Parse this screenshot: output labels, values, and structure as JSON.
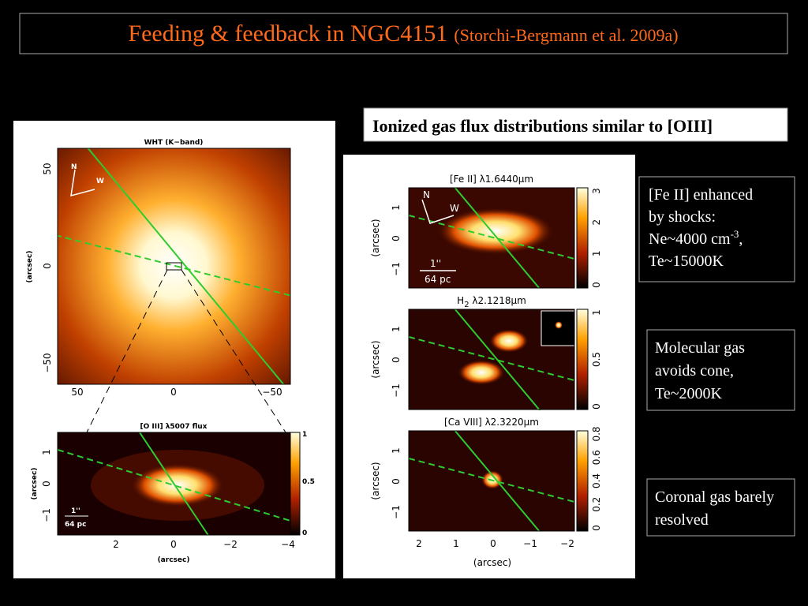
{
  "header": {
    "title": "Feeding & feedback in NGC4151",
    "citation": "(Storchi-Bergmann et al. 2009a)"
  },
  "subtitle": "Ionized gas flux distributions similar to [OIII]",
  "notes": [
    {
      "parts": [
        "[Fe II] enhanced by shocks: Ne~4000 cm",
        "-3",
        ", Te~15000K"
      ]
    },
    {
      "parts": [
        "Molecular gas avoids cone, Te~2000K"
      ]
    },
    {
      "parts": [
        "Coronal gas barely resolved"
      ]
    }
  ],
  "left_figure": {
    "top": {
      "title": "WHT (K−band)",
      "y_label": "(arcsec)",
      "yticks": [
        "50",
        "0",
        "−50"
      ],
      "xticks": [
        "50",
        "0",
        "−50"
      ],
      "compass": [
        "N",
        "W"
      ]
    },
    "bottom": {
      "title": "[O III] λ5007 flux",
      "y_label": "(arcsec)",
      "x_label": "(arcsec)",
      "yticks": [
        "1",
        "0",
        "−1"
      ],
      "xticks": [
        "2",
        "0",
        "−2",
        "−4"
      ],
      "colorbar": [
        "1",
        "0.5",
        "0"
      ],
      "scale": [
        "1''",
        "64 pc"
      ]
    }
  },
  "right_figure": {
    "panels": [
      {
        "title": "[Fe II] λ1.6440μm",
        "colorbar": [
          "3",
          "2",
          "1",
          "0"
        ],
        "compass": [
          "N",
          "W"
        ],
        "scale": [
          "1''",
          "64 pc"
        ]
      },
      {
        "title": "H",
        "title_sub": "2",
        "title_rest": " λ2.1218μm",
        "colorbar": [
          "1",
          "0.5",
          "0"
        ]
      },
      {
        "title": "[Ca VIII] λ2.3220μm",
        "colorbar": [
          "0.8",
          "0.6",
          "0.4",
          "0.2",
          "0"
        ]
      }
    ],
    "y_label": "(arcsec)",
    "yticks": [
      "1",
      "0",
      "−1"
    ],
    "xticks": [
      "2",
      "1",
      "0",
      "−1",
      "−2"
    ],
    "x_label": "(arcsec)"
  }
}
